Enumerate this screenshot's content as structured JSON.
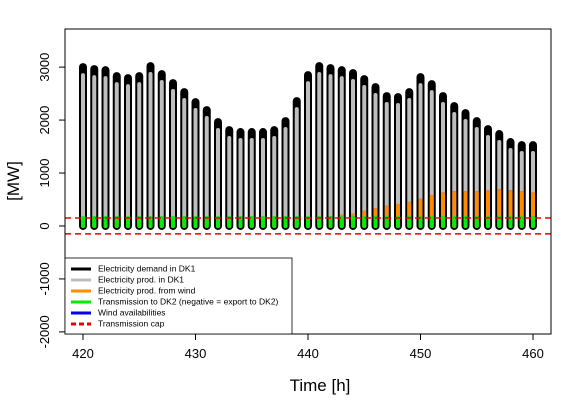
{
  "chart_data": {
    "type": "line",
    "x_label": "Time [h]",
    "y_label": "[MW]",
    "x": [
      420,
      421,
      422,
      423,
      424,
      425,
      426,
      427,
      428,
      429,
      430,
      431,
      432,
      433,
      434,
      435,
      436,
      437,
      438,
      439,
      440,
      441,
      442,
      443,
      444,
      445,
      446,
      447,
      448,
      449,
      450,
      451,
      452,
      453,
      454,
      455,
      456,
      457,
      458,
      459,
      460
    ],
    "xlim": [
      418.4,
      461.6
    ],
    "xticks": [
      420,
      430,
      440,
      450,
      460
    ],
    "ylim": [
      -2040,
      3720
    ],
    "yticks": [
      -2000,
      -1000,
      0,
      1000,
      2000,
      3000
    ],
    "series": [
      {
        "name": "Electricity demand in DK1",
        "color": "#000000",
        "width": 8,
        "values": [
          3000,
          2962,
          2943,
          2830,
          2792,
          2830,
          3019,
          2868,
          2698,
          2528,
          2340,
          2189,
          1962,
          1811,
          1774,
          1774,
          1774,
          1811,
          1981,
          2358,
          2849,
          3019,
          2981,
          2943,
          2887,
          2774,
          2623,
          2453,
          2434,
          2528,
          2811,
          2679,
          2453,
          2264,
          2132,
          1981,
          1830,
          1736,
          1585,
          1528,
          1528
        ]
      },
      {
        "name": "Electricity prod. in DK1",
        "color": "#bebebe",
        "width": 4,
        "values": [
          2850,
          2812,
          2793,
          2680,
          2642,
          2680,
          2869,
          2718,
          2548,
          2378,
          2190,
          2039,
          1812,
          1661,
          1624,
          1624,
          1624,
          1661,
          1831,
          2208,
          2699,
          2869,
          2831,
          2793,
          2737,
          2624,
          2473,
          2303,
          2284,
          2378,
          2661,
          2529,
          2303,
          2114,
          1982,
          1831,
          1680,
          1586,
          1435,
          1378,
          1378
        ]
      },
      {
        "name": "Electricity prod. from wind",
        "color": "#ff8c00",
        "width": 4,
        "values": [
          100,
          100,
          100,
          100,
          100,
          100,
          100,
          100,
          100,
          100,
          100,
          100,
          100,
          100,
          100,
          100,
          100,
          100,
          100,
          100,
          100,
          100,
          150,
          180,
          200,
          250,
          300,
          350,
          380,
          420,
          480,
          550,
          600,
          620,
          620,
          620,
          640,
          660,
          640,
          620,
          600
        ]
      },
      {
        "name": "Transmission to DK2 (negative = export to DK2)",
        "color": "#00ee00",
        "width": 4,
        "values": [
          150,
          150,
          150,
          150,
          150,
          150,
          150,
          150,
          150,
          150,
          150,
          150,
          150,
          150,
          150,
          150,
          150,
          150,
          150,
          150,
          150,
          150,
          150,
          150,
          150,
          150,
          150,
          150,
          150,
          150,
          150,
          150,
          150,
          150,
          150,
          150,
          150,
          150,
          150,
          150,
          150
        ]
      },
      {
        "name": "Wind availabilities",
        "color": "#0000ee",
        "width": 4,
        "values": [
          100,
          100,
          100,
          100,
          100,
          100,
          100,
          100,
          100,
          100,
          100,
          100,
          100,
          100,
          100,
          100,
          100,
          100,
          100,
          100,
          100,
          100,
          150,
          180,
          200,
          250,
          300,
          350,
          380,
          420,
          480,
          550,
          600,
          620,
          620,
          620,
          640,
          660,
          640,
          620,
          600
        ]
      }
    ],
    "cap": {
      "name": "Transmission cap",
      "color": "#ee0000",
      "values": [
        150,
        -150
      ]
    }
  }
}
